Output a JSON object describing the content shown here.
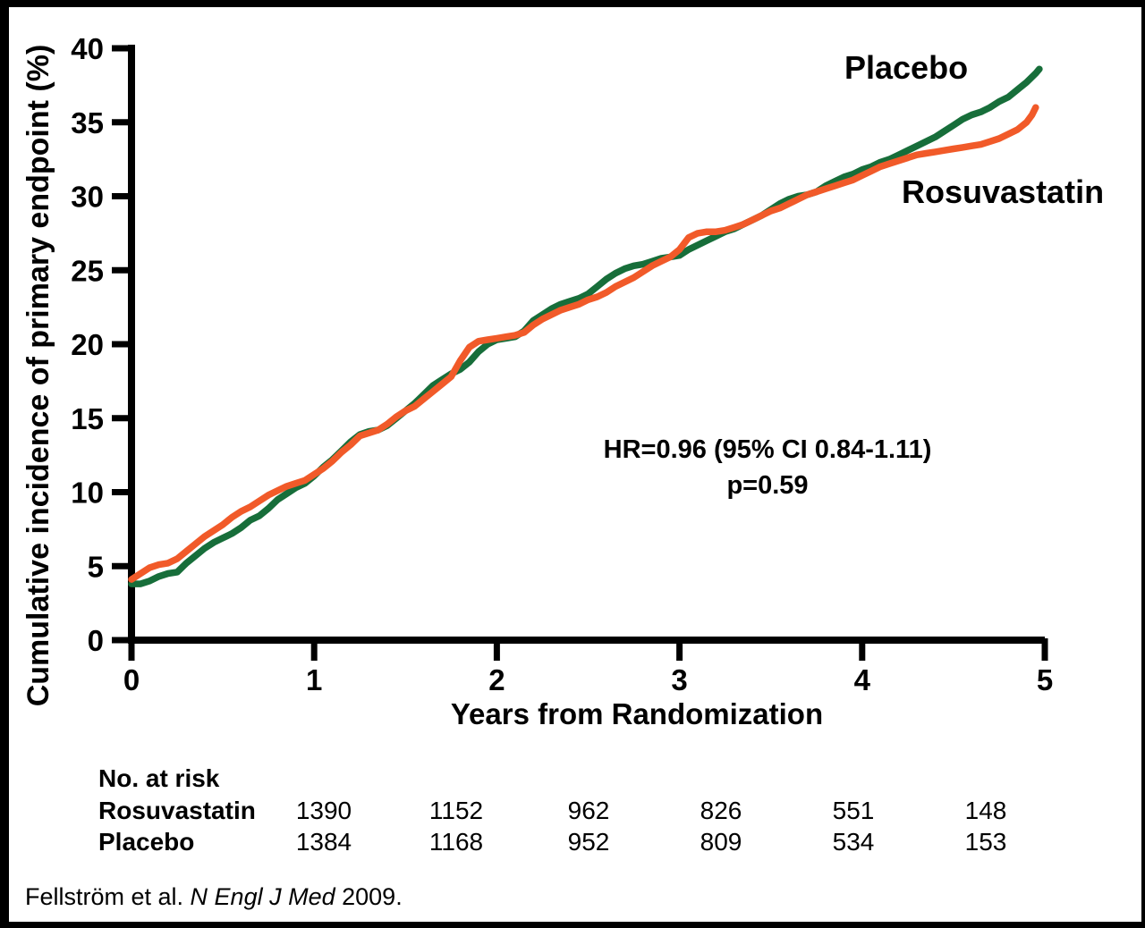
{
  "figure": {
    "y_axis_label": "Cumulative incidence of primary endpoint (%)",
    "x_axis_label": "Years from Randomization",
    "annotation_line1": "HR=0.96 (95% CI 0.84-1.11)",
    "annotation_line2": "p=0.59",
    "footer": {
      "prefix": "Fellström et al. ",
      "journal": "N Engl J Med",
      "suffix": " 2009."
    }
  },
  "chart_data": {
    "type": "line",
    "title": "",
    "xlabel": "Years from Randomization",
    "ylabel": "Cumulative incidence of primary endpoint (%)",
    "xlim": [
      0,
      5
    ],
    "ylim": [
      0,
      40
    ],
    "x_ticks": [
      0,
      1,
      2,
      3,
      4,
      5
    ],
    "y_ticks": [
      0,
      5,
      10,
      15,
      20,
      25,
      30,
      35,
      40
    ],
    "grid": false,
    "legend_position": "inline-labels",
    "annotations": [
      "HR=0.96 (95% CI 0.84-1.11)",
      "p=0.59"
    ],
    "series": [
      {
        "name": "Placebo",
        "color": "#176E3A",
        "points": [
          [
            0,
            3.8
          ],
          [
            0.05,
            3.8
          ],
          [
            0.1,
            4.0
          ],
          [
            0.15,
            4.3
          ],
          [
            0.2,
            4.5
          ],
          [
            0.25,
            4.6
          ],
          [
            0.3,
            5.2
          ],
          [
            0.35,
            5.7
          ],
          [
            0.4,
            6.2
          ],
          [
            0.45,
            6.6
          ],
          [
            0.5,
            6.9
          ],
          [
            0.55,
            7.2
          ],
          [
            0.6,
            7.6
          ],
          [
            0.65,
            8.1
          ],
          [
            0.7,
            8.4
          ],
          [
            0.75,
            8.9
          ],
          [
            0.8,
            9.5
          ],
          [
            0.85,
            9.9
          ],
          [
            0.9,
            10.3
          ],
          [
            0.95,
            10.6
          ],
          [
            1.0,
            11.1
          ],
          [
            1.05,
            11.7
          ],
          [
            1.1,
            12.2
          ],
          [
            1.15,
            12.8
          ],
          [
            1.2,
            13.4
          ],
          [
            1.25,
            13.9
          ],
          [
            1.3,
            14.1
          ],
          [
            1.35,
            14.2
          ],
          [
            1.4,
            14.5
          ],
          [
            1.45,
            15.0
          ],
          [
            1.5,
            15.5
          ],
          [
            1.55,
            16.0
          ],
          [
            1.6,
            16.6
          ],
          [
            1.65,
            17.2
          ],
          [
            1.7,
            17.6
          ],
          [
            1.75,
            18.0
          ],
          [
            1.8,
            18.3
          ],
          [
            1.85,
            18.8
          ],
          [
            1.9,
            19.5
          ],
          [
            1.95,
            20.0
          ],
          [
            2.0,
            20.3
          ],
          [
            2.05,
            20.4
          ],
          [
            2.1,
            20.5
          ],
          [
            2.15,
            20.9
          ],
          [
            2.2,
            21.6
          ],
          [
            2.25,
            22.0
          ],
          [
            2.3,
            22.4
          ],
          [
            2.35,
            22.7
          ],
          [
            2.4,
            22.9
          ],
          [
            2.45,
            23.1
          ],
          [
            2.5,
            23.4
          ],
          [
            2.55,
            23.9
          ],
          [
            2.6,
            24.4
          ],
          [
            2.65,
            24.8
          ],
          [
            2.7,
            25.1
          ],
          [
            2.75,
            25.3
          ],
          [
            2.8,
            25.4
          ],
          [
            2.85,
            25.6
          ],
          [
            2.9,
            25.8
          ],
          [
            2.95,
            25.9
          ],
          [
            3.0,
            26.0
          ],
          [
            3.05,
            26.4
          ],
          [
            3.1,
            26.7
          ],
          [
            3.15,
            27.0
          ],
          [
            3.2,
            27.3
          ],
          [
            3.25,
            27.6
          ],
          [
            3.3,
            27.8
          ],
          [
            3.35,
            28.1
          ],
          [
            3.4,
            28.4
          ],
          [
            3.45,
            28.7
          ],
          [
            3.5,
            29.1
          ],
          [
            3.55,
            29.5
          ],
          [
            3.6,
            29.8
          ],
          [
            3.65,
            30.0
          ],
          [
            3.7,
            30.1
          ],
          [
            3.75,
            30.3
          ],
          [
            3.8,
            30.7
          ],
          [
            3.85,
            31.0
          ],
          [
            3.9,
            31.3
          ],
          [
            3.95,
            31.5
          ],
          [
            4.0,
            31.8
          ],
          [
            4.05,
            32.0
          ],
          [
            4.1,
            32.3
          ],
          [
            4.15,
            32.5
          ],
          [
            4.2,
            32.8
          ],
          [
            4.25,
            33.1
          ],
          [
            4.3,
            33.4
          ],
          [
            4.35,
            33.7
          ],
          [
            4.4,
            34.0
          ],
          [
            4.45,
            34.4
          ],
          [
            4.5,
            34.8
          ],
          [
            4.55,
            35.2
          ],
          [
            4.6,
            35.5
          ],
          [
            4.65,
            35.7
          ],
          [
            4.7,
            36.0
          ],
          [
            4.75,
            36.4
          ],
          [
            4.8,
            36.7
          ],
          [
            4.85,
            37.2
          ],
          [
            4.9,
            37.7
          ],
          [
            4.95,
            38.3
          ],
          [
            4.97,
            38.6
          ]
        ]
      },
      {
        "name": "Rosuvastatin",
        "color": "#F15A29",
        "points": [
          [
            0,
            4.1
          ],
          [
            0.05,
            4.5
          ],
          [
            0.1,
            4.9
          ],
          [
            0.15,
            5.1
          ],
          [
            0.2,
            5.2
          ],
          [
            0.25,
            5.5
          ],
          [
            0.3,
            6.0
          ],
          [
            0.35,
            6.5
          ],
          [
            0.4,
            7.0
          ],
          [
            0.45,
            7.4
          ],
          [
            0.5,
            7.8
          ],
          [
            0.55,
            8.3
          ],
          [
            0.6,
            8.7
          ],
          [
            0.65,
            9.0
          ],
          [
            0.7,
            9.4
          ],
          [
            0.75,
            9.8
          ],
          [
            0.8,
            10.1
          ],
          [
            0.85,
            10.4
          ],
          [
            0.9,
            10.6
          ],
          [
            0.95,
            10.8
          ],
          [
            1.0,
            11.2
          ],
          [
            1.05,
            11.6
          ],
          [
            1.1,
            12.1
          ],
          [
            1.15,
            12.7
          ],
          [
            1.2,
            13.2
          ],
          [
            1.25,
            13.8
          ],
          [
            1.3,
            14.0
          ],
          [
            1.35,
            14.2
          ],
          [
            1.4,
            14.6
          ],
          [
            1.45,
            15.1
          ],
          [
            1.5,
            15.5
          ],
          [
            1.55,
            15.8
          ],
          [
            1.6,
            16.3
          ],
          [
            1.65,
            16.8
          ],
          [
            1.7,
            17.3
          ],
          [
            1.75,
            17.8
          ],
          [
            1.8,
            18.9
          ],
          [
            1.85,
            19.8
          ],
          [
            1.9,
            20.2
          ],
          [
            1.95,
            20.3
          ],
          [
            2.0,
            20.4
          ],
          [
            2.05,
            20.5
          ],
          [
            2.1,
            20.6
          ],
          [
            2.15,
            20.8
          ],
          [
            2.2,
            21.3
          ],
          [
            2.25,
            21.7
          ],
          [
            2.3,
            22.0
          ],
          [
            2.35,
            22.3
          ],
          [
            2.4,
            22.5
          ],
          [
            2.45,
            22.7
          ],
          [
            2.5,
            23.0
          ],
          [
            2.55,
            23.2
          ],
          [
            2.6,
            23.5
          ],
          [
            2.65,
            23.9
          ],
          [
            2.7,
            24.2
          ],
          [
            2.75,
            24.5
          ],
          [
            2.8,
            24.9
          ],
          [
            2.85,
            25.3
          ],
          [
            2.9,
            25.6
          ],
          [
            2.95,
            25.9
          ],
          [
            3.0,
            26.4
          ],
          [
            3.05,
            27.2
          ],
          [
            3.1,
            27.5
          ],
          [
            3.15,
            27.6
          ],
          [
            3.2,
            27.6
          ],
          [
            3.25,
            27.7
          ],
          [
            3.3,
            27.9
          ],
          [
            3.35,
            28.1
          ],
          [
            3.4,
            28.4
          ],
          [
            3.45,
            28.7
          ],
          [
            3.5,
            29.0
          ],
          [
            3.55,
            29.2
          ],
          [
            3.6,
            29.5
          ],
          [
            3.65,
            29.8
          ],
          [
            3.7,
            30.1
          ],
          [
            3.75,
            30.3
          ],
          [
            3.8,
            30.5
          ],
          [
            3.85,
            30.7
          ],
          [
            3.9,
            30.9
          ],
          [
            3.95,
            31.1
          ],
          [
            4.0,
            31.4
          ],
          [
            4.05,
            31.7
          ],
          [
            4.1,
            32.0
          ],
          [
            4.15,
            32.2
          ],
          [
            4.2,
            32.4
          ],
          [
            4.25,
            32.6
          ],
          [
            4.3,
            32.8
          ],
          [
            4.35,
            32.9
          ],
          [
            4.4,
            33.0
          ],
          [
            4.45,
            33.1
          ],
          [
            4.5,
            33.2
          ],
          [
            4.55,
            33.3
          ],
          [
            4.6,
            33.4
          ],
          [
            4.65,
            33.5
          ],
          [
            4.7,
            33.7
          ],
          [
            4.75,
            33.9
          ],
          [
            4.8,
            34.2
          ],
          [
            4.85,
            34.5
          ],
          [
            4.9,
            35.0
          ],
          [
            4.93,
            35.5
          ],
          [
            4.95,
            36.0
          ]
        ]
      }
    ]
  },
  "risk_table": {
    "title": "No. at risk",
    "rows": [
      {
        "label": "Rosuvastatin",
        "values": [
          "1390",
          "1152",
          "962",
          "826",
          "551",
          "148"
        ]
      },
      {
        "label": "Placebo",
        "values": [
          "1384",
          "1168",
          "952",
          "809",
          "534",
          "153"
        ]
      }
    ]
  }
}
